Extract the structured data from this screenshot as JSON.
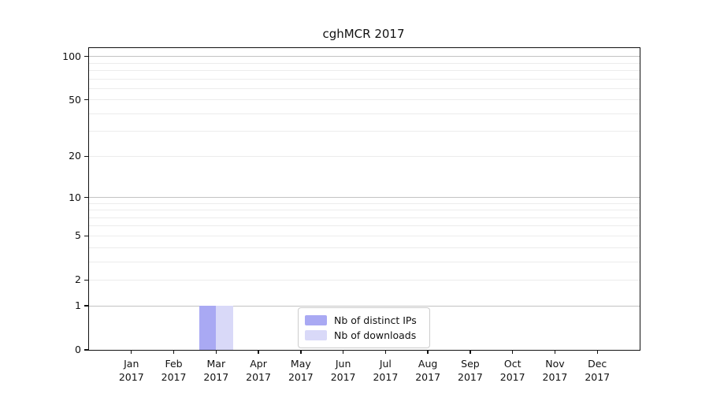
{
  "title": "cghMCR 2017",
  "colors": {
    "distinct_ips_bar": "#a9a9f3",
    "downloads_bar": "#d9d9f8",
    "grid_major": "#c3c3c3",
    "grid_minor": "#ececec",
    "axis": "#111111",
    "legend_border": "#cccccc",
    "background": "#ffffff"
  },
  "legend": {
    "position": "lower center",
    "items": [
      {
        "label": "Nb of distinct IPs",
        "color": "#a9a9f3"
      },
      {
        "label": "Nb of downloads",
        "color": "#d9d9f8"
      }
    ]
  },
  "chart_data": {
    "type": "bar",
    "title": "cghMCR 2017",
    "categories": [
      "Jan",
      "Feb",
      "Mar",
      "Apr",
      "May",
      "Jun",
      "Jul",
      "Aug",
      "Sep",
      "Oct",
      "Nov",
      "Dec"
    ],
    "year": "2017",
    "series": [
      {
        "name": "Nb of distinct IPs",
        "color": "#a9a9f3",
        "values": [
          0,
          0,
          1,
          0,
          0,
          0,
          0,
          0,
          0,
          0,
          0,
          0
        ]
      },
      {
        "name": "Nb of downloads",
        "color": "#d9d9f8",
        "values": [
          0,
          0,
          1,
          0,
          0,
          0,
          0,
          0,
          0,
          0,
          0,
          0
        ]
      }
    ],
    "y_axis": {
      "scale": "log10(1+value)",
      "tick_values": [
        0,
        1,
        2,
        5,
        10,
        20,
        50,
        100
      ],
      "major_gridlines": [
        1,
        10,
        100
      ],
      "minor_gridlines": [
        2,
        3,
        4,
        5,
        6,
        7,
        8,
        9,
        20,
        30,
        40,
        50,
        60,
        70,
        80,
        90
      ],
      "top_value": 113
    },
    "xlabel": "",
    "ylabel": "",
    "grid": true,
    "legend_position": "lower center"
  }
}
